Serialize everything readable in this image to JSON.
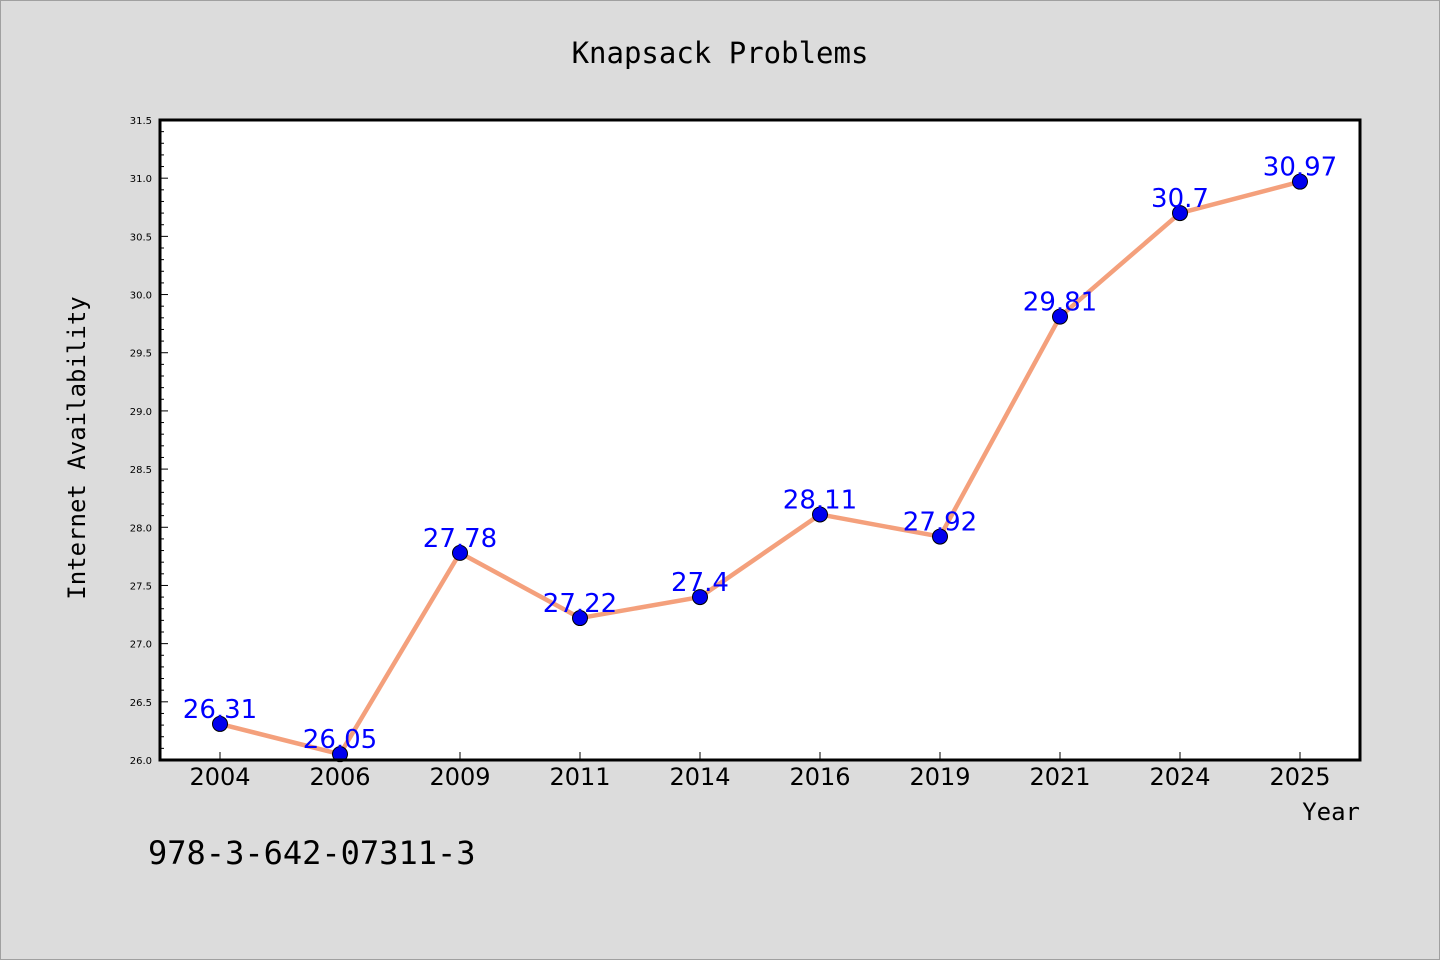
{
  "chart_data": {
    "type": "line",
    "title": "Knapsack Problems",
    "xlabel": "Year",
    "ylabel": "Internet Availability",
    "categories": [
      "2004",
      "2006",
      "2009",
      "2011",
      "2014",
      "2016",
      "2019",
      "2021",
      "2024",
      "2025"
    ],
    "series": [
      {
        "values": [
          26.31,
          26.05,
          27.78,
          27.22,
          27.4,
          28.11,
          27.92,
          29.81,
          30.7,
          30.97
        ],
        "labels": [
          "26.31",
          "26.05",
          "27.78",
          "27.22",
          "27.4",
          "28.11",
          "27.92",
          "29.81",
          "30.7",
          "30.97"
        ],
        "line_color": "#f4a07c",
        "marker_color": "#0000ee"
      }
    ],
    "ylim": [
      26.0,
      31.5
    ],
    "yticks": [
      "26.0",
      "26.5",
      "27.0",
      "27.5",
      "28.0",
      "28.5",
      "29.0",
      "29.5",
      "30.0",
      "30.5",
      "31.0",
      "31.5"
    ],
    "grid": false,
    "label_color": "#0000ff"
  },
  "footer": {
    "isbn": "978-3-642-07311-3"
  },
  "colors": {
    "background": "#dcdcdc",
    "plot_background": "#ffffff"
  }
}
